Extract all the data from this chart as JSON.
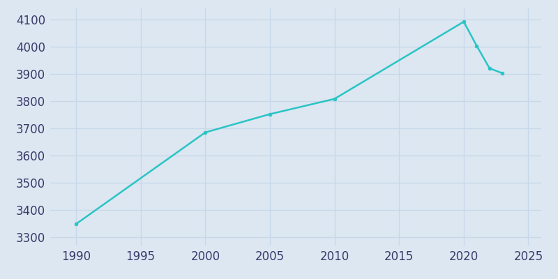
{
  "years": [
    1990,
    2000,
    2005,
    2010,
    2020,
    2021,
    2022,
    2023
  ],
  "population": [
    3349,
    3685,
    3752,
    3808,
    4091,
    4003,
    3920,
    3902
  ],
  "line_color": "#2ac4c4",
  "bg_color": "#dce7f2",
  "grid_color": "#c8d8e8",
  "tick_color": "#3a3a6a",
  "xlim": [
    1988,
    2026
  ],
  "ylim": [
    3270,
    4140
  ],
  "xticks": [
    1990,
    1995,
    2000,
    2005,
    2010,
    2015,
    2020,
    2025
  ],
  "yticks": [
    3300,
    3400,
    3500,
    3600,
    3700,
    3800,
    3900,
    4000,
    4100
  ],
  "linewidth": 1.8,
  "markersize": 3.5,
  "tick_labelsize": 12
}
